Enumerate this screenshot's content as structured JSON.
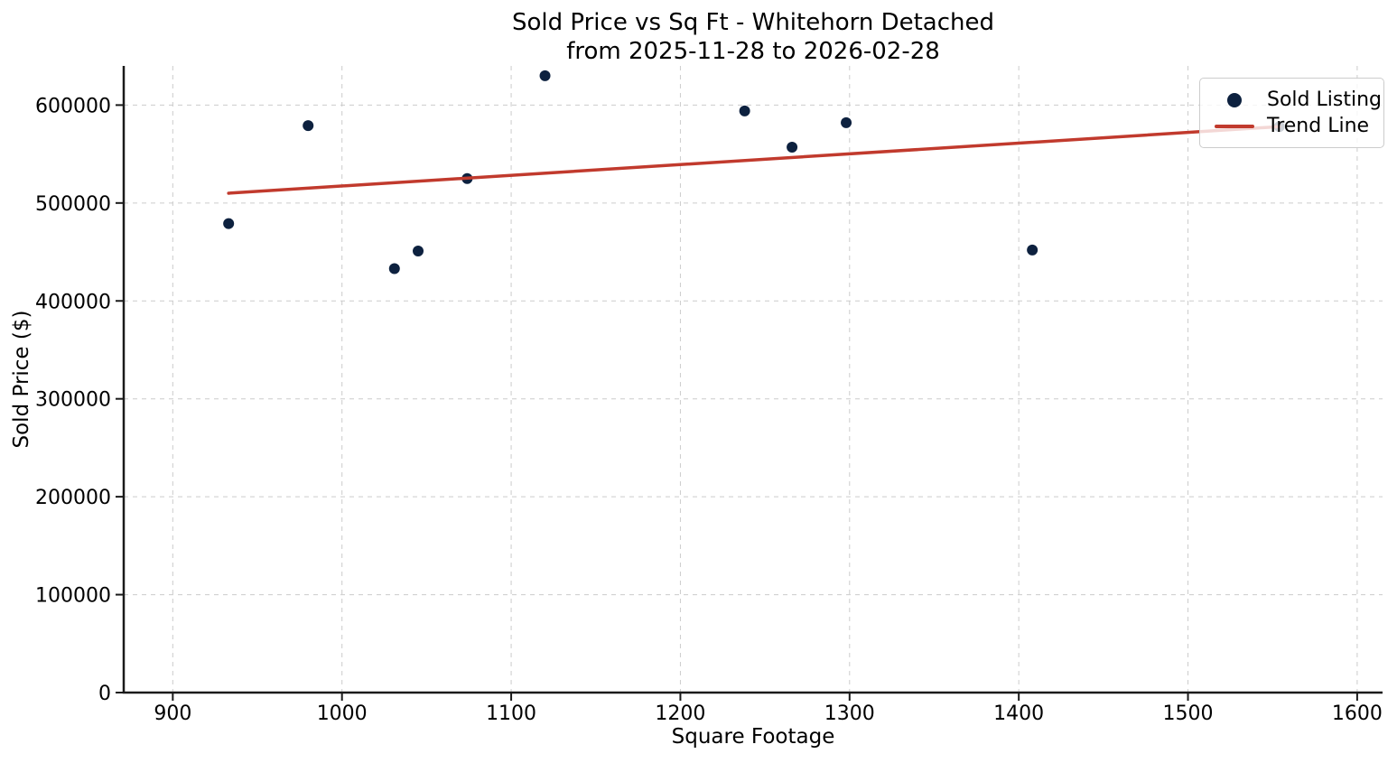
{
  "chart_data": {
    "type": "scatter",
    "title_lines": [
      "Sold Price vs Sq Ft - Whitehorn Detached",
      "from 2025-11-28 to 2026-02-28"
    ],
    "xlabel": "Square Footage",
    "ylabel": "Sold Price ($)",
    "xlim": [
      871,
      1615
    ],
    "ylim": [
      0,
      640000
    ],
    "x_ticks": [
      900,
      1000,
      1100,
      1200,
      1300,
      1400,
      1500,
      1600
    ],
    "y_ticks": [
      0,
      100000,
      200000,
      300000,
      400000,
      500000,
      600000
    ],
    "grid": true,
    "grid_style": "dashed",
    "legend_position": "upper-right",
    "colors": {
      "sold_listing": "#0d213f",
      "trend_line": "#c13a2d",
      "spine": "#1a1a1a",
      "grid": "#cccccc"
    },
    "series": [
      {
        "name": "Sold Listing",
        "type": "scatter",
        "color": "#0d213f",
        "points": [
          [
            933,
            479000
          ],
          [
            980,
            579000
          ],
          [
            1031,
            433000
          ],
          [
            1045,
            451000
          ],
          [
            1074,
            525000
          ],
          [
            1120,
            630000
          ],
          [
            1238,
            594000
          ],
          [
            1266,
            557000
          ],
          [
            1298,
            582000
          ],
          [
            1408,
            452000
          ],
          [
            1554,
            578000
          ]
        ]
      },
      {
        "name": "Trend Line",
        "type": "line",
        "color": "#c13a2d",
        "points": [
          [
            933,
            510000
          ],
          [
            1554,
            578000
          ]
        ]
      }
    ],
    "legend": [
      {
        "label": "Sold Listing",
        "marker": "dot"
      },
      {
        "label": "Trend Line",
        "marker": "line"
      }
    ]
  }
}
